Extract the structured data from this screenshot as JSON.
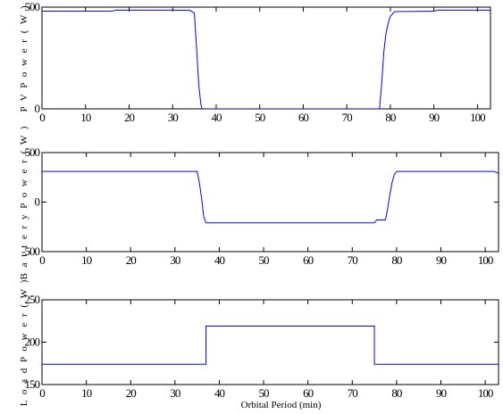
{
  "chart_data": [
    {
      "type": "line",
      "title": "",
      "xlabel": "",
      "ylabel": "P V   P o w e r ( W )",
      "xlim": [
        0,
        103
      ],
      "ylim": [
        0,
        500
      ],
      "xticks": [
        0,
        10,
        20,
        30,
        40,
        50,
        60,
        70,
        80,
        90,
        100
      ],
      "yticks": [
        0,
        500
      ],
      "color": "#0000ff",
      "series": [
        {
          "x": [
            0,
            16,
            17,
            30,
            34,
            35,
            35.5,
            36,
            36.5,
            36.8,
            77.5,
            78,
            78.5,
            79,
            79.5,
            80,
            81,
            90,
            91,
            103
          ],
          "y": [
            480,
            480,
            485,
            485,
            484,
            470,
            300,
            120,
            20,
            0,
            0,
            120,
            280,
            370,
            420,
            455,
            478,
            480,
            485,
            485
          ]
        }
      ]
    },
    {
      "type": "line",
      "title": "",
      "xlabel": "",
      "ylabel": "B a t t e r y   P o w e r ( W )",
      "xlim": [
        0,
        103
      ],
      "ylim": [
        -500,
        500
      ],
      "xticks": [
        0,
        10,
        20,
        30,
        40,
        50,
        60,
        70,
        80,
        90,
        100
      ],
      "yticks": [
        -500,
        0,
        500
      ],
      "color": "#0000ff",
      "series": [
        {
          "x": [
            0,
            35,
            35.5,
            36,
            36.5,
            37,
            75,
            75.5,
            77.5,
            78,
            78.5,
            79,
            79.5,
            80,
            102,
            103
          ],
          "y": [
            310,
            310,
            200,
            40,
            -150,
            -210,
            -210,
            -180,
            -180,
            -60,
            80,
            200,
            280,
            310,
            310,
            290
          ]
        }
      ]
    },
    {
      "type": "line",
      "title": "",
      "xlabel": "Orbital Period (min)",
      "ylabel": "L o a d   P o w e r ( W )",
      "xlim": [
        0,
        103
      ],
      "ylim": [
        150,
        250
      ],
      "xticks": [
        0,
        10,
        20,
        30,
        40,
        50,
        60,
        70,
        80,
        90,
        100
      ],
      "yticks": [
        150,
        200,
        250
      ],
      "color": "#0000ff",
      "series": [
        {
          "x": [
            0,
            37,
            37,
            75,
            75,
            103
          ],
          "y": [
            174,
            174,
            219,
            219,
            174,
            174
          ]
        }
      ]
    }
  ]
}
